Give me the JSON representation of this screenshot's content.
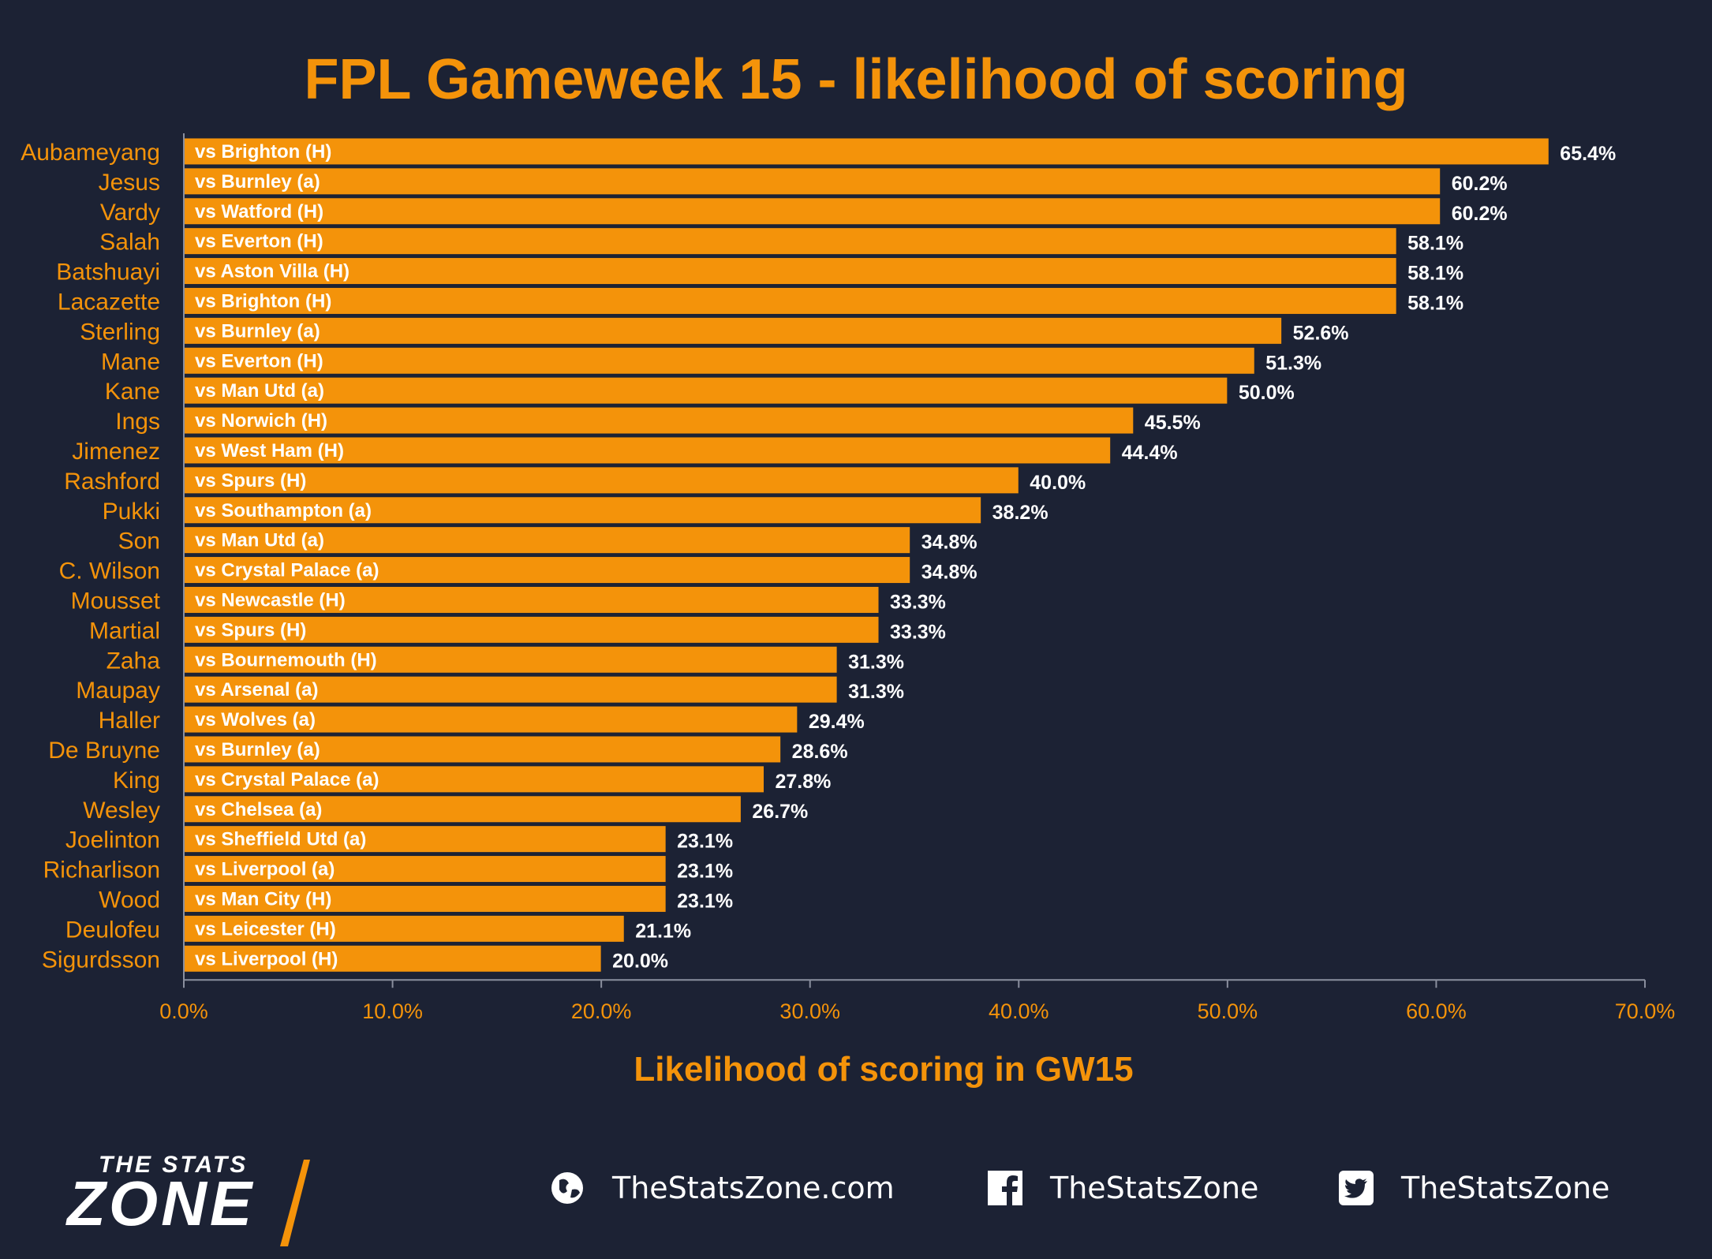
{
  "title": "FPL Gameweek 15 - likelihood of scoring",
  "chart_data": {
    "type": "bar",
    "orientation": "horizontal",
    "title": "FPL Gameweek 15 - likelihood of scoring",
    "xlabel": "Likelihood of scoring in GW15",
    "ylabel": "",
    "xlim": [
      0,
      70
    ],
    "ticks": [
      "0.0%",
      "10.0%",
      "20.0%",
      "30.0%",
      "40.0%",
      "50.0%",
      "60.0%",
      "70.0%"
    ],
    "grid": false,
    "bar_color": "#f4930a",
    "categories": [
      "Aubameyang",
      "Jesus",
      "Vardy",
      "Salah",
      "Batshuayi",
      "Lacazette",
      "Sterling",
      "Mane",
      "Kane",
      "Ings",
      "Jimenez",
      "Rashford",
      "Pukki",
      "Son",
      "C. Wilson",
      "Mousset",
      "Martial",
      "Zaha",
      "Maupay",
      "Haller",
      "De Bruyne",
      "King",
      "Wesley",
      "Joelinton",
      "Richarlison",
      "Wood",
      "Deulofeu",
      "Sigurdsson"
    ],
    "fixtures": [
      "vs Brighton (H)",
      "vs Burnley (a)",
      "vs Watford (H)",
      "vs Everton (H)",
      "vs Aston Villa (H)",
      "vs Brighton (H)",
      "vs Burnley (a)",
      "vs Everton (H)",
      "vs Man Utd (a)",
      "vs Norwich (H)",
      "vs West Ham (H)",
      "vs Spurs (H)",
      "vs Southampton (a)",
      "vs Man Utd (a)",
      "vs Crystal Palace (a)",
      "vs Newcastle (H)",
      "vs Spurs (H)",
      "vs Bournemouth (H)",
      "vs Arsenal (a)",
      "vs Wolves (a)",
      "vs Burnley (a)",
      "vs Crystal Palace (a)",
      "vs Chelsea (a)",
      "vs Sheffield Utd (a)",
      "vs Liverpool (a)",
      "vs Man City (H)",
      "vs Leicester (H)",
      "vs Liverpool (H)"
    ],
    "values": [
      65.4,
      60.2,
      60.2,
      58.1,
      58.1,
      58.1,
      52.6,
      51.3,
      50.0,
      45.5,
      44.4,
      40.0,
      38.2,
      34.8,
      34.8,
      33.3,
      33.3,
      31.3,
      31.3,
      29.4,
      28.6,
      27.8,
      26.7,
      23.1,
      23.1,
      23.1,
      21.1,
      20.0
    ],
    "value_labels": [
      "65.4%",
      "60.2%",
      "60.2%",
      "58.1%",
      "58.1%",
      "58.1%",
      "52.6%",
      "51.3%",
      "50.0%",
      "45.5%",
      "44.4%",
      "40.0%",
      "38.2%",
      "34.8%",
      "34.8%",
      "33.3%",
      "33.3%",
      "31.3%",
      "31.3%",
      "29.4%",
      "28.6%",
      "27.8%",
      "26.7%",
      "23.1%",
      "23.1%",
      "23.1%",
      "21.1%",
      "20.0%"
    ]
  },
  "footer": {
    "logo_top": "THE STATS",
    "logo_main": "ZONE",
    "website": "TheStatsZone.com",
    "facebook": "TheStatsZone",
    "twitter": "TheStatsZone"
  },
  "colors": {
    "background": "#1c2234",
    "accent": "#f4930a",
    "text": "#ffffff"
  },
  "icons": {
    "website": "globe-icon",
    "facebook": "facebook-icon",
    "twitter": "twitter-icon"
  }
}
